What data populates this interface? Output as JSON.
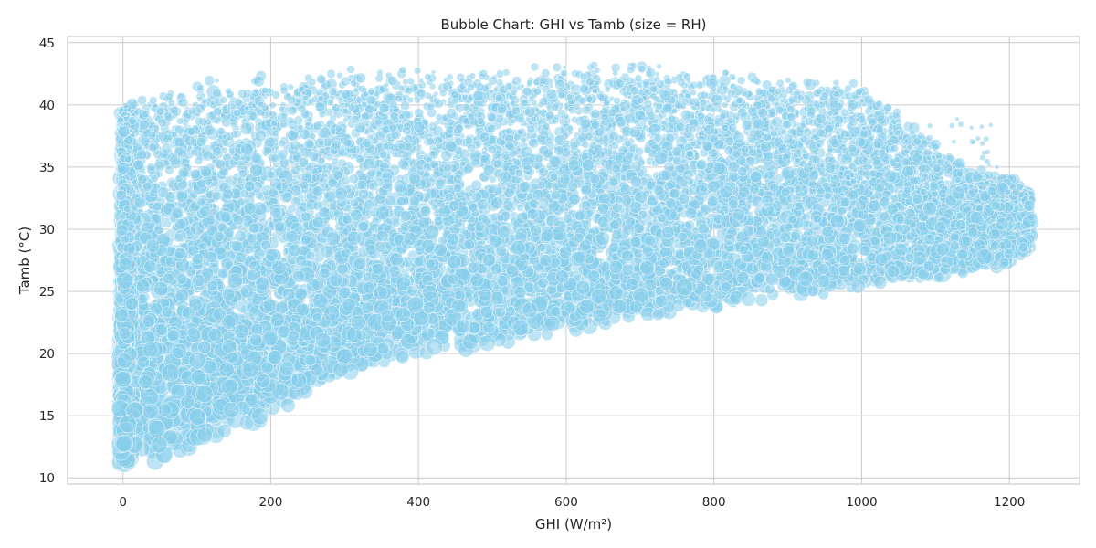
{
  "chart_data": {
    "type": "scatter",
    "title": "Bubble Chart: GHI vs Tamb (size = RH)",
    "xlabel": "GHI (W/m²)",
    "ylabel": "Tamb (°C)",
    "xlim": [
      -75,
      1295
    ],
    "ylim": [
      9.5,
      45.5
    ],
    "xticks": [
      0,
      200,
      400,
      600,
      800,
      1000,
      1200
    ],
    "yticks": [
      10,
      15,
      20,
      25,
      30,
      35,
      40,
      45
    ],
    "grid": true,
    "legend": "none",
    "marker_color": "#87ceeb",
    "marker_edge_color": "#ffffff",
    "grid_color": "#cccccc",
    "spine_color": "#cccccc",
    "density_envelope": [
      {
        "x": 0,
        "y_low": 11,
        "y_high": 40
      },
      {
        "x": 50,
        "y_low": 11,
        "y_high": 41.5
      },
      {
        "x": 100,
        "y_low": 12,
        "y_high": 42
      },
      {
        "x": 200,
        "y_low": 15,
        "y_high": 42.5
      },
      {
        "x": 300,
        "y_low": 18,
        "y_high": 43
      },
      {
        "x": 400,
        "y_low": 19.5,
        "y_high": 43
      },
      {
        "x": 500,
        "y_low": 20.5,
        "y_high": 43
      },
      {
        "x": 600,
        "y_low": 21.5,
        "y_high": 43.5
      },
      {
        "x": 700,
        "y_low": 22.5,
        "y_high": 43.5
      },
      {
        "x": 800,
        "y_low": 23.5,
        "y_high": 43
      },
      {
        "x": 900,
        "y_low": 24.5,
        "y_high": 42.5
      },
      {
        "x": 1000,
        "y_low": 25,
        "y_high": 42
      },
      {
        "x": 1050,
        "y_low": 25.5,
        "y_high": 39.5
      },
      {
        "x": 1100,
        "y_low": 26,
        "y_high": 37
      },
      {
        "x": 1150,
        "y_low": 26.5,
        "y_high": 35
      },
      {
        "x": 1200,
        "y_low": 27,
        "y_high": 34.5
      },
      {
        "x": 1230,
        "y_low": 28.5,
        "y_high": 33
      }
    ],
    "size_range_rh": [
      5,
      100
    ],
    "point_count_approx": 12000
  }
}
